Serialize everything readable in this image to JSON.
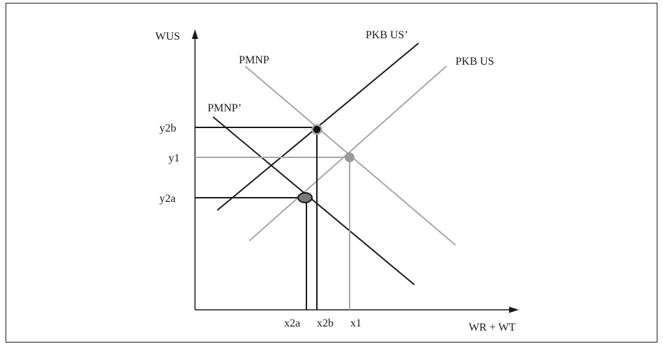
{
  "diagram": {
    "axes": {
      "y_label": "WUS",
      "x_label": "WR + WT"
    },
    "curves": {
      "pkb_us_prime": "PKB US’",
      "pkb_us": "PKB US",
      "pmnp": "PMNP",
      "pmnp_prime": "PMNP’"
    },
    "y_ticks": {
      "y2b": "y2b",
      "y1": "y1",
      "y2a": "y2a"
    },
    "x_ticks": {
      "x2a": "x2a",
      "x2b": "x2b",
      "x1": "x1"
    },
    "colors": {
      "black": "#1a1a1a",
      "gray": "#a6a6a6",
      "point_dark": "#111111",
      "point_gray": "#9a9a9a",
      "ellipse_fill": "#7a7a7a"
    }
  }
}
